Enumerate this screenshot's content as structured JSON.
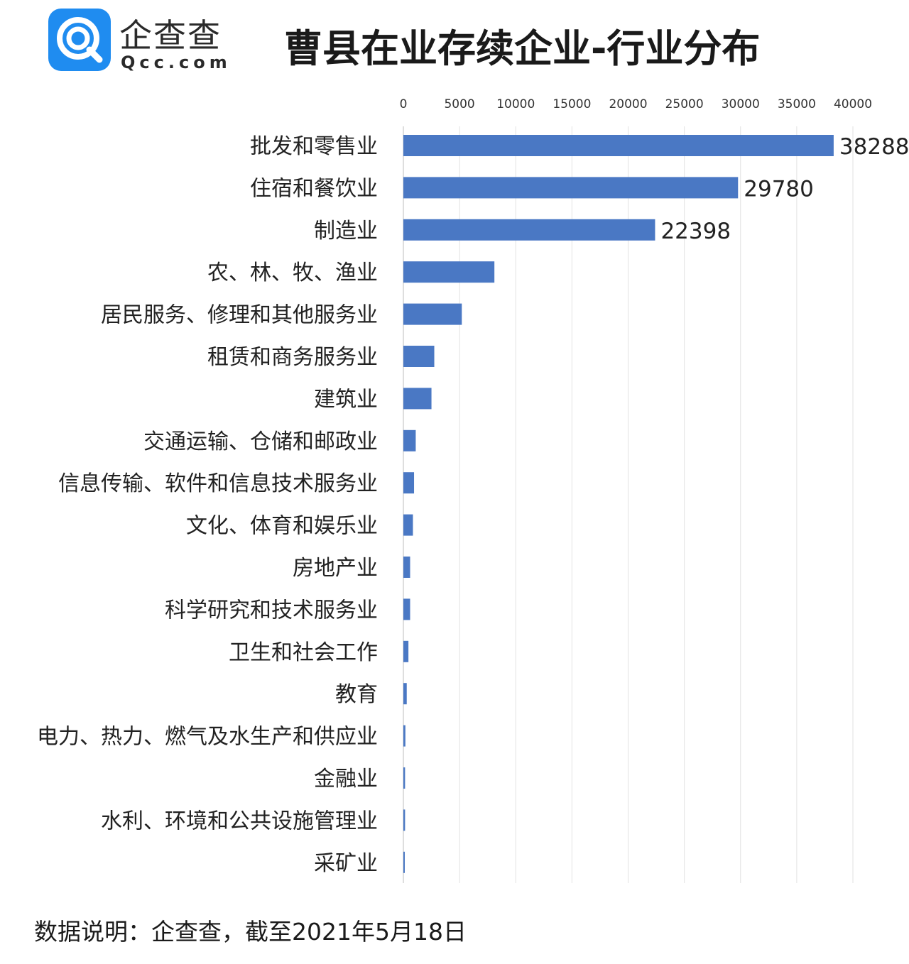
{
  "brand": {
    "name_cn": "企查查",
    "name_en": "Qcc.com",
    "color": "#1f8cf0"
  },
  "title": "曹县在业存续企业-行业分布",
  "footer": "数据说明：企查查，截至2021年5月18日",
  "chart_data": {
    "type": "bar",
    "orientation": "horizontal",
    "title": "曹县在业存续企业-行业分布",
    "xlim": [
      0,
      40000
    ],
    "xticks": [
      0,
      5000,
      10000,
      15000,
      20000,
      25000,
      30000,
      35000,
      40000
    ],
    "x_axis_position": "top",
    "grid": true,
    "bar_color": "#4a78c4",
    "categories": [
      "批发和零售业",
      "住宿和餐饮业",
      "制造业",
      "农、林、牧、渔业",
      "居民服务、修理和其他服务业",
      "租赁和商务服务业",
      "建筑业",
      "交通运输、仓储和邮政业",
      "信息传输、软件和信息技术服务业",
      "文化、体育和娱乐业",
      "房地产业",
      "科学研究和技术服务业",
      "卫生和社会工作",
      "教育",
      "电力、热力、燃气及水生产和供应业",
      "金融业",
      "水利、环境和公共设施管理业",
      "采矿业"
    ],
    "values": [
      38288,
      29780,
      22398,
      8100,
      5200,
      2750,
      2500,
      1100,
      950,
      850,
      600,
      600,
      450,
      300,
      180,
      150,
      150,
      120
    ],
    "data_labels": [
      "38288",
      "29780",
      "22398",
      "",
      "",
      "",
      "",
      "",
      "",
      "",
      "",
      "",
      "",
      "",
      "",
      "",
      "",
      ""
    ]
  }
}
